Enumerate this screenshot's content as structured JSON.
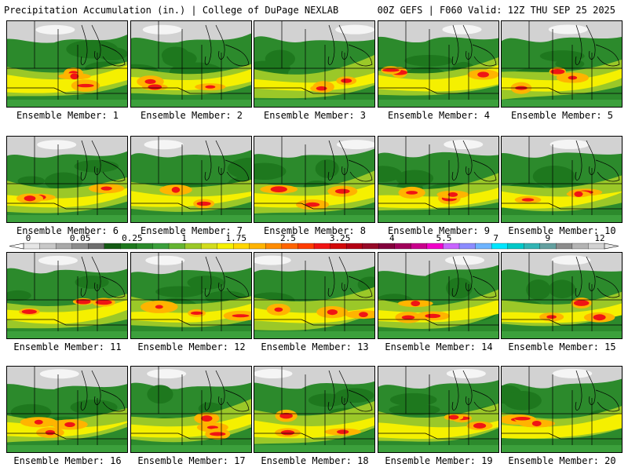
{
  "header": {
    "title": "Precipitation Accumulation (in.) | College of DuPage NEXLAB",
    "run_info": "00Z GEFS | F060 Valid: 12Z THU SEP 25 2025"
  },
  "panels": [
    {
      "label": "Ensemble Member: 1"
    },
    {
      "label": "Ensemble Member: 2"
    },
    {
      "label": "Ensemble Member: 3"
    },
    {
      "label": "Ensemble Member: 4"
    },
    {
      "label": "Ensemble Member: 5"
    },
    {
      "label": "Ensemble Member: 6"
    },
    {
      "label": "Ensemble Member: 7"
    },
    {
      "label": "Ensemble Member: 8"
    },
    {
      "label": "Ensemble Member: 9"
    },
    {
      "label": "Ensemble Member: 10"
    },
    {
      "label": "Ensemble Member: 11"
    },
    {
      "label": "Ensemble Member: 12"
    },
    {
      "label": "Ensemble Member: 13"
    },
    {
      "label": "Ensemble Member: 14"
    },
    {
      "label": "Ensemble Member: 15"
    },
    {
      "label": "Ensemble Member: 16"
    },
    {
      "label": "Ensemble Member: 17"
    },
    {
      "label": "Ensemble Member: 18"
    },
    {
      "label": "Ensemble Member: 19"
    },
    {
      "label": "Ensemble Member: 20"
    }
  ],
  "colorbar": {
    "labels": [
      "0",
      "0.05",
      "0.25",
      "1",
      "1.75",
      "2.5",
      "3.25",
      "4",
      "5.5",
      "7",
      "9",
      "12"
    ],
    "colors": [
      "#e6e6e6",
      "#c8c8c8",
      "#a9a9a9",
      "#8c8c8c",
      "#6e6e6e",
      "#145a14",
      "#1e781e",
      "#2c8a2c",
      "#3ca03c",
      "#64b432",
      "#9bc828",
      "#d2dc1e",
      "#f5f000",
      "#ffd700",
      "#ffb400",
      "#ff8c00",
      "#ff6400",
      "#ff3c00",
      "#f01414",
      "#d20a0a",
      "#b40014",
      "#960a28",
      "#82003c",
      "#a0005a",
      "#c8008c",
      "#f000c8",
      "#c864ff",
      "#8c8cff",
      "#6eb4ff",
      "#00e6ff",
      "#00c8c8",
      "#32b4b4",
      "#64a0a0",
      "#8c8c8c",
      "#b4b4b4",
      "#d2d2d2"
    ]
  }
}
